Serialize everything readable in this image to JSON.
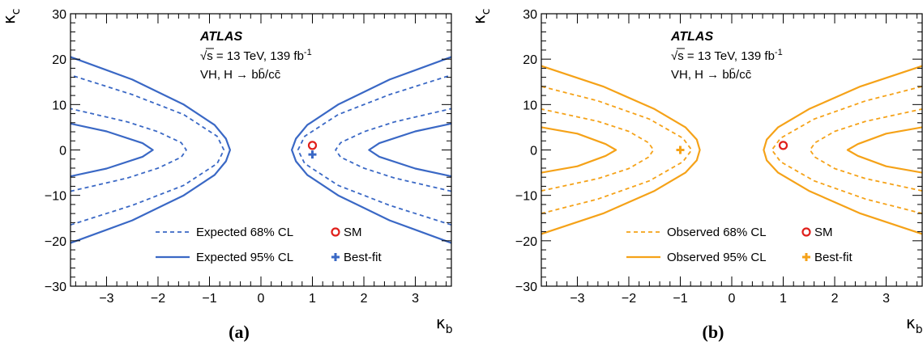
{
  "chart_data": [
    {
      "type": "line",
      "panel_label": "(a)",
      "experiment": "ATLAS",
      "energy_label": "√s = 13 TeV, 139 fb",
      "energy_sup": "-1",
      "process_label": "VH, H → bb̄/cc̄",
      "xlabel": "κ",
      "xlabel_sub": "b",
      "ylabel": "κ",
      "ylabel_sub": "c",
      "xlim": [
        -3.7,
        3.7
      ],
      "ylim": [
        -30,
        30
      ],
      "xticks": [
        -3,
        -2,
        -1,
        0,
        1,
        2,
        3
      ],
      "yticks": [
        -30,
        -20,
        -10,
        0,
        10,
        20,
        30
      ],
      "color": "#3a68c5",
      "series": [
        {
          "name": "Expected 68% CL",
          "style": "dashed",
          "branches": [
            {
              "x": [
                -3.7,
                -2.6,
                -2.0,
                -1.55,
                -1.45,
                -1.55,
                -2.0,
                -2.6,
                -3.7
              ],
              "y": [
                -9.1,
                -6.2,
                -4.0,
                -1.6,
                0.0,
                1.6,
                4.0,
                6.2,
                9.1
              ]
            },
            {
              "x": [
                3.7,
                2.6,
                2.0,
                1.55,
                1.45,
                1.55,
                2.0,
                2.6,
                3.7
              ],
              "y": [
                -9.1,
                -6.2,
                -4.0,
                -1.6,
                0.0,
                1.6,
                4.0,
                6.2,
                9.1
              ]
            }
          ]
        },
        {
          "name": "Expected 68% CL",
          "style": "dashed",
          "branches": [
            {
              "x": [
                -3.7,
                -2.5,
                -1.5,
                -0.85,
                -0.72,
                -0.85,
                -1.5,
                -2.5,
                -3.7
              ],
              "y": [
                -16.5,
                -12.2,
                -7.8,
                -3.0,
                0.0,
                3.0,
                7.8,
                12.2,
                16.5
              ]
            },
            {
              "x": [
                3.7,
                2.5,
                1.5,
                0.85,
                0.72,
                0.85,
                1.5,
                2.5,
                3.7
              ],
              "y": [
                -16.5,
                -12.2,
                -7.8,
                -3.0,
                0.0,
                3.0,
                7.8,
                12.2,
                16.5
              ]
            }
          ]
        },
        {
          "name": "Expected 95% CL",
          "style": "solid",
          "branches": [
            {
              "x": [
                -3.7,
                -3.0,
                -2.3,
                -2.1,
                -2.3,
                -3.0,
                -3.7
              ],
              "y": [
                -5.8,
                -4.1,
                -1.5,
                0.0,
                1.5,
                4.1,
                5.8
              ]
            },
            {
              "x": [
                3.7,
                3.0,
                2.3,
                2.1,
                2.3,
                3.0,
                3.7
              ],
              "y": [
                -5.8,
                -4.1,
                -1.5,
                0.0,
                1.5,
                4.1,
                5.8
              ]
            }
          ]
        },
        {
          "name": "Expected 95% CL",
          "style": "solid",
          "branches": [
            {
              "x": [
                -3.7,
                -2.5,
                -1.5,
                -0.9,
                -0.68,
                -0.6,
                -0.68,
                -0.9,
                -1.5,
                -2.5,
                -3.7
              ],
              "y": [
                -20.5,
                -15.5,
                -10.0,
                -5.5,
                -2.5,
                0.0,
                2.5,
                5.5,
                10.0,
                15.5,
                20.5
              ]
            },
            {
              "x": [
                3.7,
                2.5,
                1.5,
                0.9,
                0.68,
                0.6,
                0.68,
                0.9,
                1.5,
                2.5,
                3.7
              ],
              "y": [
                -20.5,
                -15.5,
                -10.0,
                -5.5,
                -2.5,
                0.0,
                2.5,
                5.5,
                10.0,
                15.5,
                20.5
              ]
            }
          ]
        }
      ],
      "markers": [
        {
          "name": "SM",
          "symbol": "circle",
          "x": 1.0,
          "y": 1.0,
          "color": "#e0201b"
        },
        {
          "name": "Best-fit",
          "symbol": "cross",
          "x": 1.0,
          "y": -1.0,
          "color": "#3a68c5"
        }
      ]
    },
    {
      "type": "line",
      "panel_label": "(b)",
      "experiment": "ATLAS",
      "energy_label": "√s = 13 TeV, 139 fb",
      "energy_sup": "-1",
      "process_label": "VH, H → bb̄/cc̄",
      "xlabel": "κ",
      "xlabel_sub": "b",
      "ylabel": "κ",
      "ylabel_sub": "c",
      "xlim": [
        -3.7,
        3.7
      ],
      "ylim": [
        -30,
        30
      ],
      "xticks": [
        -3,
        -2,
        -1,
        0,
        1,
        2,
        3
      ],
      "yticks": [
        -30,
        -20,
        -10,
        0,
        10,
        20,
        30
      ],
      "color": "#f5a218",
      "series": [
        {
          "name": "Observed 68% CL",
          "style": "dashed",
          "branches": [
            {
              "x": [
                -3.7,
                -2.6,
                -2.0,
                -1.62,
                -1.52,
                -1.62,
                -2.0,
                -2.6,
                -3.7
              ],
              "y": [
                -9.0,
                -6.3,
                -4.1,
                -1.6,
                0.0,
                1.6,
                4.1,
                6.3,
                9.0
              ]
            },
            {
              "x": [
                3.7,
                2.6,
                2.0,
                1.62,
                1.52,
                1.62,
                2.0,
                2.6,
                3.7
              ],
              "y": [
                -9.0,
                -6.3,
                -4.1,
                -1.6,
                0.0,
                1.6,
                4.1,
                6.3,
                9.0
              ]
            }
          ]
        },
        {
          "name": "Observed 68% CL",
          "style": "dashed",
          "branches": [
            {
              "x": [
                -3.7,
                -2.6,
                -1.6,
                -0.95,
                -0.78,
                -0.95,
                -1.6,
                -2.6,
                -3.7
              ],
              "y": [
                -14.0,
                -10.8,
                -6.8,
                -2.6,
                0.0,
                2.6,
                6.8,
                10.8,
                14.0
              ]
            },
            {
              "x": [
                3.7,
                2.6,
                1.6,
                0.95,
                0.78,
                0.95,
                1.6,
                2.6,
                3.7
              ],
              "y": [
                -14.0,
                -10.8,
                -6.8,
                -2.6,
                0.0,
                2.6,
                6.8,
                10.8,
                14.0
              ]
            }
          ]
        },
        {
          "name": "Observed 95% CL",
          "style": "solid",
          "branches": [
            {
              "x": [
                -3.7,
                -3.0,
                -2.45,
                -2.25,
                -2.45,
                -3.0,
                -3.7
              ],
              "y": [
                -5.0,
                -3.6,
                -1.3,
                0.0,
                1.3,
                3.6,
                5.0
              ]
            },
            {
              "x": [
                3.7,
                3.0,
                2.45,
                2.25,
                2.45,
                3.0,
                3.7
              ],
              "y": [
                -5.0,
                -3.6,
                -1.3,
                0.0,
                1.3,
                3.6,
                5.0
              ]
            }
          ]
        },
        {
          "name": "Observed 95% CL",
          "style": "solid",
          "branches": [
            {
              "x": [
                -3.7,
                -2.5,
                -1.5,
                -0.9,
                -0.68,
                -0.62,
                -0.68,
                -0.9,
                -1.5,
                -2.5,
                -3.7
              ],
              "y": [
                -18.5,
                -14.0,
                -9.0,
                -5.0,
                -2.3,
                0.0,
                2.3,
                5.0,
                9.0,
                14.0,
                18.5
              ]
            },
            {
              "x": [
                3.7,
                2.5,
                1.5,
                0.9,
                0.68,
                0.62,
                0.68,
                0.9,
                1.5,
                2.5,
                3.7
              ],
              "y": [
                -18.5,
                -14.0,
                -9.0,
                -5.0,
                -2.3,
                0.0,
                2.3,
                5.0,
                9.0,
                14.0,
                18.5
              ]
            }
          ]
        }
      ],
      "markers": [
        {
          "name": "SM",
          "symbol": "circle",
          "x": 1.0,
          "y": 1.0,
          "color": "#e0201b"
        },
        {
          "name": "Best-fit",
          "symbol": "cross",
          "x": -1.0,
          "y": 0.0,
          "color": "#f5a218"
        }
      ]
    }
  ]
}
